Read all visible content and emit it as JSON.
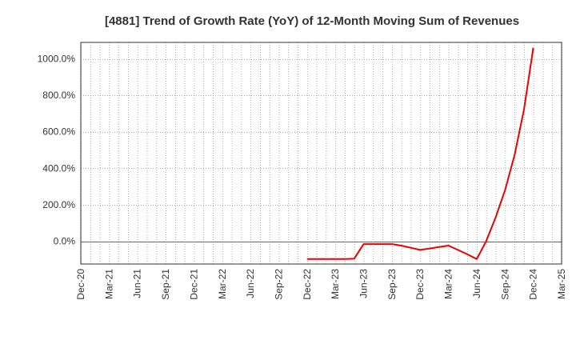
{
  "chart_data": {
    "type": "line",
    "title": "[4881]  Trend of Growth Rate (YoY) of 12-Month Moving Sum of Revenues",
    "xlabel": "",
    "ylabel": "",
    "x_tick_labels": [
      "Dec-20",
      "Mar-21",
      "Jun-21",
      "Sep-21",
      "Dec-21",
      "Mar-22",
      "Jun-22",
      "Sep-22",
      "Dec-22",
      "Mar-23",
      "Jun-23",
      "Sep-23",
      "Dec-23",
      "Mar-24",
      "Jun-24",
      "Sep-24",
      "Dec-24",
      "Mar-25"
    ],
    "y_tick_labels": [
      "0.0%",
      "200.0%",
      "400.0%",
      "600.0%",
      "800.0%",
      "1000.0%"
    ],
    "y_ticks": [
      0,
      200,
      400,
      600,
      800,
      1000
    ],
    "ylim": [
      -125,
      1090
    ],
    "x_range": [
      "2020-12",
      "2025-03"
    ],
    "grid": true,
    "series": [
      {
        "color": "#ee0000",
        "x": [
          "2022-12",
          "2023-01",
          "2023-02",
          "2023-03",
          "2023-04",
          "2023-05",
          "2023-06",
          "2023-07",
          "2023-08",
          "2023-09",
          "2023-10",
          "2023-11",
          "2023-12",
          "2024-01",
          "2024-02",
          "2024-03",
          "2024-04",
          "2024-05",
          "2024-06",
          "2024-07",
          "2024-08",
          "2024-09",
          "2024-10",
          "2024-11",
          "2024-12"
        ],
        "values": [
          -98,
          -98,
          -98,
          -98,
          -98,
          -96,
          -16,
          -16,
          -16,
          -16,
          -24,
          -36,
          -48,
          -40,
          -32,
          -24,
          -48,
          -72,
          -98,
          0,
          130,
          280,
          470,
          720,
          1060
        ]
      }
    ]
  }
}
